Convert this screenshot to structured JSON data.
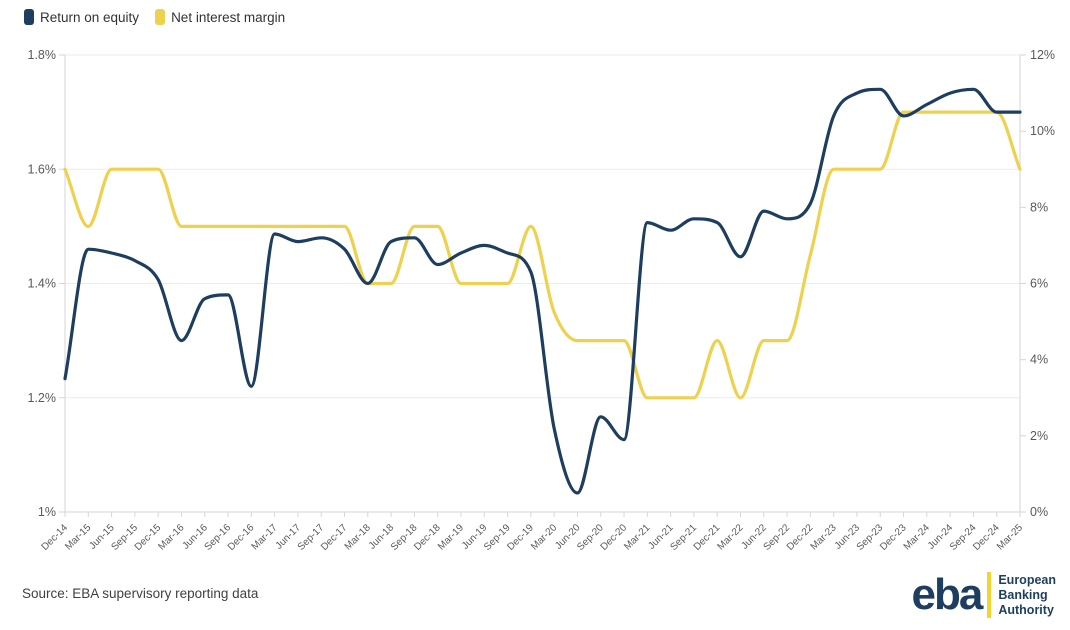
{
  "legend": [
    {
      "label": "Return on equity",
      "color": "#1d3e5f"
    },
    {
      "label": "Net interest margin",
      "color": "#eed14f"
    }
  ],
  "chart_data": {
    "type": "line",
    "title": "",
    "categories": [
      "Dec-14",
      "Mar-15",
      "Jun-15",
      "Sep-15",
      "Dec-15",
      "Mar-16",
      "Jun-16",
      "Sep-16",
      "Dec-16",
      "Mar-17",
      "Jun-17",
      "Sep-17",
      "Dec-17",
      "Mar-18",
      "Jun-18",
      "Sep-18",
      "Dec-18",
      "Mar-19",
      "Jun-19",
      "Sep-19",
      "Dec-19",
      "Mar-20",
      "Jun-20",
      "Sep-20",
      "Dec-20",
      "Mar-21",
      "Jun-21",
      "Sep-21",
      "Dec-21",
      "Mar-22",
      "Jun-22",
      "Sep-22",
      "Dec-22",
      "Mar-23",
      "Jun-23",
      "Sep-23",
      "Dec-23",
      "Mar-24",
      "Jun-24",
      "Sep-24",
      "Dec-24",
      "Mar-25"
    ],
    "series": [
      {
        "name": "Return on equity",
        "axis": "right",
        "color": "#1d3e5f",
        "values": [
          3.5,
          6.9,
          6.8,
          6.6,
          6.1,
          4.5,
          5.6,
          5.7,
          3.3,
          7.3,
          7.1,
          7.2,
          6.9,
          6.0,
          7.1,
          7.2,
          6.5,
          6.8,
          7.0,
          6.8,
          6.3,
          2.2,
          0.5,
          2.5,
          1.9,
          7.6,
          7.4,
          7.7,
          7.6,
          6.7,
          7.9,
          7.7,
          8.1,
          10.4,
          11.0,
          11.1,
          10.4,
          10.7,
          11.0,
          11.1,
          10.5,
          10.5
        ]
      },
      {
        "name": "Net interest margin",
        "axis": "left",
        "color": "#eed14f",
        "values": [
          1.6,
          1.5,
          1.6,
          1.6,
          1.6,
          1.5,
          1.5,
          1.5,
          1.5,
          1.5,
          1.5,
          1.5,
          1.5,
          1.4,
          1.4,
          1.5,
          1.5,
          1.4,
          1.4,
          1.4,
          1.5,
          1.35,
          1.3,
          1.3,
          1.3,
          1.2,
          1.2,
          1.2,
          1.3,
          1.2,
          1.3,
          1.3,
          1.45,
          1.6,
          1.6,
          1.6,
          1.7,
          1.7,
          1.7,
          1.7,
          1.7,
          1.6
        ]
      }
    ],
    "left_axis": {
      "min": 1.0,
      "max": 1.8,
      "tick_labels": [
        "1.8%",
        "1.6%",
        "1.4%",
        "1.2%",
        "1%"
      ],
      "tick_values": [
        1.8,
        1.6,
        1.4,
        1.2,
        1.0
      ]
    },
    "right_axis": {
      "min": 0,
      "max": 12,
      "tick_labels": [
        "12%",
        "10%",
        "8%",
        "6%",
        "4%",
        "2%",
        "0%"
      ],
      "tick_values": [
        12,
        10,
        8,
        6,
        4,
        2,
        0
      ]
    },
    "grid": "horizontal-left-ticks",
    "legend_position": "top-left",
    "colors": {
      "grid": "#ebebeb",
      "axis": "#d6d6d6",
      "tick": "#d6d6d6",
      "axis_label": "#595959",
      "x_label": "#595959"
    }
  },
  "source": "Source: EBA supervisory reporting data",
  "logo": {
    "abbr": "eba",
    "bar_color": "#f5d42e",
    "line1": "European",
    "line2": "Banking",
    "line3": "Authority"
  }
}
